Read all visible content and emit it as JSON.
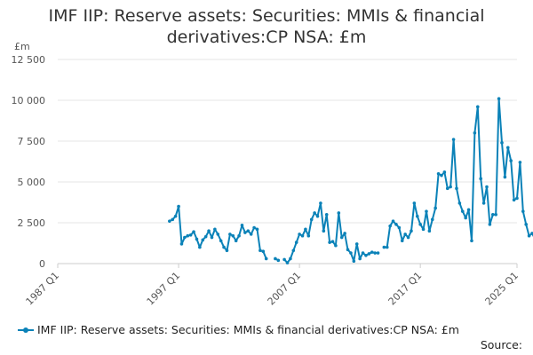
{
  "colors": {
    "series": "#0b82b8",
    "grid": "#e6e6e6",
    "axis": "#cccccc"
  },
  "chart_data": {
    "type": "line",
    "title": "IMF IIP: Reserve assets: Securities: MMIs & financial derivatives:CP NSA: £m",
    "title_lines": [
      "IMF IIP: Reserve assets: Securities: MMIs & financial",
      "derivatives:CP NSA: £m"
    ],
    "y_unit_label": "£m",
    "ylim": [
      0,
      12500
    ],
    "y_ticks": [
      0,
      2500,
      5000,
      7500,
      10000,
      12500
    ],
    "y_tick_labels": [
      "0",
      "2 500",
      "5 000",
      "7 500",
      "10 000",
      "12 500"
    ],
    "xlim": [
      1987.0,
      2025.0
    ],
    "x_ticks": [
      1987,
      1997,
      2007,
      2017,
      2025
    ],
    "x_tick_labels": [
      "1987 Q1",
      "1997 Q1",
      "2007 Q1",
      "2017 Q1",
      "2025 Q1"
    ],
    "legend": "bottom",
    "series": [
      {
        "name": "IMF IIP: Reserve assets: Securities: MMIs & financial derivatives:CP NSA: £m",
        "segments": [
          [
            [
              1996.25,
              2600
            ],
            [
              1996.5,
              2700
            ],
            [
              1996.75,
              2900
            ],
            [
              1997.0,
              3500
            ],
            [
              1997.25,
              1200
            ],
            [
              1997.5,
              1600
            ],
            [
              1997.75,
              1700
            ],
            [
              1998.0,
              1750
            ],
            [
              1998.25,
              1950
            ],
            [
              1998.5,
              1500
            ],
            [
              1998.75,
              1000
            ],
            [
              1999.0,
              1450
            ],
            [
              1999.25,
              1650
            ],
            [
              1999.5,
              2000
            ],
            [
              1999.75,
              1600
            ],
            [
              2000.0,
              2100
            ],
            [
              2000.25,
              1800
            ],
            [
              2000.5,
              1400
            ],
            [
              2000.75,
              1000
            ],
            [
              2001.0,
              800
            ],
            [
              2001.25,
              1800
            ],
            [
              2001.5,
              1700
            ],
            [
              2001.75,
              1400
            ],
            [
              2002.0,
              1700
            ],
            [
              2002.25,
              2350
            ],
            [
              2002.5,
              1900
            ],
            [
              2002.75,
              2000
            ],
            [
              2003.0,
              1800
            ],
            [
              2003.25,
              2200
            ],
            [
              2003.5,
              2100
            ],
            [
              2003.75,
              800
            ],
            [
              2004.0,
              750
            ],
            [
              2004.25,
              300
            ]
          ],
          [
            [
              2005.0,
              300
            ],
            [
              2005.25,
              200
            ]
          ],
          [
            [
              2005.75,
              250
            ],
            [
              2006.0,
              50
            ],
            [
              2006.25,
              300
            ],
            [
              2006.5,
              800
            ],
            [
              2006.75,
              1300
            ],
            [
              2007.0,
              1800
            ],
            [
              2007.25,
              1700
            ],
            [
              2007.5,
              2100
            ],
            [
              2007.75,
              1700
            ],
            [
              2008.0,
              2700
            ],
            [
              2008.25,
              3100
            ],
            [
              2008.5,
              2900
            ],
            [
              2008.75,
              3700
            ],
            [
              2009.0,
              2000
            ],
            [
              2009.25,
              3000
            ],
            [
              2009.5,
              1300
            ],
            [
              2009.75,
              1350
            ],
            [
              2010.0,
              1100
            ],
            [
              2010.25,
              3100
            ],
            [
              2010.5,
              1600
            ],
            [
              2010.75,
              1850
            ],
            [
              2011.0,
              850
            ],
            [
              2011.25,
              650
            ],
            [
              2011.5,
              150
            ],
            [
              2011.75,
              1200
            ],
            [
              2012.0,
              300
            ],
            [
              2012.25,
              650
            ],
            [
              2012.5,
              500
            ],
            [
              2012.75,
              600
            ],
            [
              2013.0,
              700
            ],
            [
              2013.25,
              650
            ],
            [
              2013.5,
              650
            ]
          ],
          [
            [
              2014.0,
              1000
            ],
            [
              2014.25,
              1000
            ],
            [
              2014.5,
              2300
            ],
            [
              2014.75,
              2600
            ],
            [
              2015.0,
              2400
            ],
            [
              2015.25,
              2200
            ],
            [
              2015.5,
              1400
            ],
            [
              2015.75,
              1800
            ],
            [
              2016.0,
              1600
            ],
            [
              2016.25,
              2000
            ],
            [
              2016.5,
              3700
            ],
            [
              2016.75,
              2900
            ],
            [
              2017.0,
              2400
            ],
            [
              2017.25,
              2100
            ],
            [
              2017.5,
              3200
            ],
            [
              2017.75,
              2000
            ],
            [
              2018.0,
              2700
            ],
            [
              2018.25,
              3400
            ],
            [
              2018.5,
              5500
            ],
            [
              2018.75,
              5400
            ],
            [
              2019.0,
              5600
            ],
            [
              2019.25,
              4600
            ],
            [
              2019.5,
              4700
            ],
            [
              2019.75,
              7600
            ],
            [
              2020.0,
              4600
            ],
            [
              2020.25,
              3700
            ],
            [
              2020.5,
              3200
            ],
            [
              2020.75,
              2800
            ],
            [
              2021.0,
              3300
            ],
            [
              2021.25,
              1400
            ],
            [
              2021.5,
              8000
            ],
            [
              2021.75,
              9600
            ],
            [
              2022.0,
              5200
            ],
            [
              2022.25,
              3700
            ],
            [
              2022.5,
              4700
            ],
            [
              2022.75,
              2400
            ],
            [
              2023.0,
              3000
            ],
            [
              2023.25,
              3000
            ],
            [
              2023.5,
              10100
            ],
            [
              2023.75,
              7400
            ],
            [
              2024.0,
              5300
            ],
            [
              2024.25,
              7100
            ],
            [
              2024.5,
              6300
            ],
            [
              2024.75,
              3900
            ],
            [
              2025.0,
              4000
            ],
            [
              2025.25,
              6200
            ],
            [
              2025.5,
              3200
            ],
            [
              2025.75,
              2400
            ],
            [
              2026.0,
              1700
            ],
            [
              2026.25,
              1850
            ],
            [
              2026.5,
              1500
            ]
          ]
        ]
      }
    ]
  },
  "legend": {
    "label": "IMF IIP: Reserve assets: Securities: MMIs & financial derivatives:CP NSA: £m"
  },
  "source": {
    "label": "Source:"
  }
}
